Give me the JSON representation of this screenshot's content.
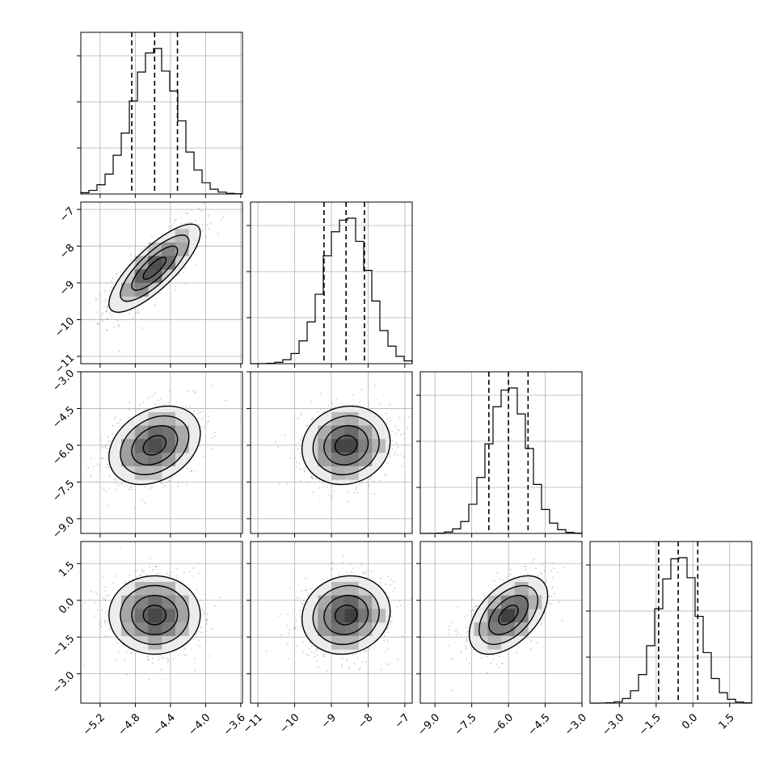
{
  "chart_data": {
    "type": "corner",
    "parameters": [
      {
        "index": 0,
        "range": [
          -5.42,
          -3.58
        ],
        "ticks": [
          -5.2,
          -4.8,
          -4.4,
          -4.0,
          -3.6
        ],
        "tick_labels": [
          "−5.2",
          "−4.8",
          "−4.4",
          "−4.0",
          "−3.6"
        ],
        "median": -4.58,
        "q16": -4.84,
        "q84": -4.32,
        "sigma": 0.26
      },
      {
        "index": 1,
        "range": [
          -11.2,
          -6.8
        ],
        "ticks": [
          -11,
          -10,
          -9,
          -8,
          -7
        ],
        "tick_labels": [
          "−11",
          "−10",
          "−9",
          "−8",
          "−7"
        ],
        "median": -8.6,
        "q16": -9.2,
        "q84": -8.1,
        "sigma": 0.6
      },
      {
        "index": 2,
        "range": [
          -9.6,
          -3.0
        ],
        "ticks": [
          -9.0,
          -7.5,
          -6.0,
          -4.5,
          -3.0
        ],
        "tick_labels": [
          "−9.0",
          "−7.5",
          "−6.0",
          "−4.5",
          "−3.0"
        ],
        "median": -6.0,
        "q16": -6.8,
        "q84": -5.2,
        "sigma": 0.8
      },
      {
        "index": 3,
        "range": [
          -4.2,
          2.4
        ],
        "ticks": [
          -3.0,
          -1.5,
          0.0,
          1.5
        ],
        "tick_labels": [
          "−3.0",
          "−1.5",
          "0.0",
          "1.5"
        ],
        "median": -0.6,
        "q16": -1.4,
        "q84": 0.2,
        "sigma": 0.8
      }
    ],
    "correlations": [
      {
        "row": 1,
        "col": 0,
        "rho": 0.8
      },
      {
        "row": 2,
        "col": 0,
        "rho": 0.3
      },
      {
        "row": 2,
        "col": 1,
        "rho": 0.1
      },
      {
        "row": 3,
        "col": 0,
        "rho": 0.0
      },
      {
        "row": 3,
        "col": 1,
        "rho": 0.1
      },
      {
        "row": 3,
        "col": 2,
        "rho": 0.5
      }
    ],
    "histogram_bins": 20,
    "grid": true,
    "colors": {
      "line": "#000000",
      "points": "#9e9e9e",
      "grid": "#b0b0b0"
    }
  }
}
